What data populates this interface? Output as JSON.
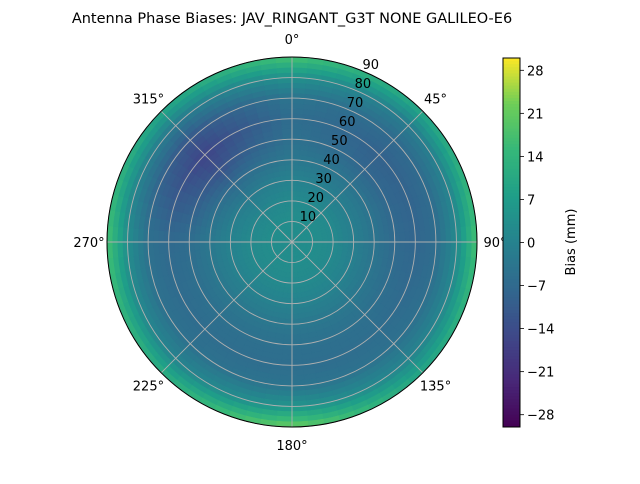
{
  "chart_data": {
    "type": "heatmap",
    "subtype": "polar",
    "title": "Antenna Phase Biases: JAV_RINGANT_G3T NONE GALILEO-E6",
    "theta_zero": "north",
    "theta_direction": "clockwise",
    "theta_ticks": [
      "0°",
      "45°",
      "90°",
      "135°",
      "180°",
      "225°",
      "270°",
      "315°"
    ],
    "r_ticks": [
      "10",
      "20",
      "30",
      "40",
      "50",
      "60",
      "70",
      "80",
      "90"
    ],
    "r_lim": [
      0,
      90
    ],
    "grid": true,
    "colormap": "viridis",
    "colorbar": {
      "label": "Bias (mm)",
      "vmin": -30,
      "vmax": 30,
      "ticks": [
        28,
        21,
        14,
        7,
        0,
        -7,
        -14,
        -21,
        -28
      ],
      "tick_labels": [
        "28",
        "21",
        "14",
        "7",
        "0",
        "−7",
        "−14",
        "−21",
        "−28"
      ]
    },
    "azimuth_deg": [
      0,
      45,
      90,
      135,
      180,
      225,
      270,
      315
    ],
    "zenith_deg": [
      0,
      10,
      20,
      30,
      40,
      50,
      60,
      70,
      80,
      90
    ],
    "bias_mm": [
      [
        3,
        3,
        3,
        3,
        3,
        3,
        3,
        3
      ],
      [
        3,
        3,
        3,
        3,
        3,
        3,
        3,
        3
      ],
      [
        2,
        2,
        2,
        2,
        2,
        2,
        2,
        1
      ],
      [
        0,
        -1,
        -1,
        0,
        0,
        0,
        0,
        -2
      ],
      [
        -3,
        -4,
        -4,
        -3,
        -3,
        -3,
        -3,
        -7
      ],
      [
        -5,
        -8,
        -7,
        -5,
        -5,
        -5,
        -6,
        -13
      ],
      [
        -6,
        -9,
        -8,
        -6,
        -6,
        -6,
        -7,
        -16
      ],
      [
        -4,
        -7,
        -6,
        -5,
        -4,
        -5,
        -5,
        -12
      ],
      [
        4,
        -2,
        2,
        0,
        5,
        0,
        3,
        -3
      ],
      [
        18,
        10,
        18,
        10,
        22,
        12,
        18,
        10
      ]
    ]
  }
}
